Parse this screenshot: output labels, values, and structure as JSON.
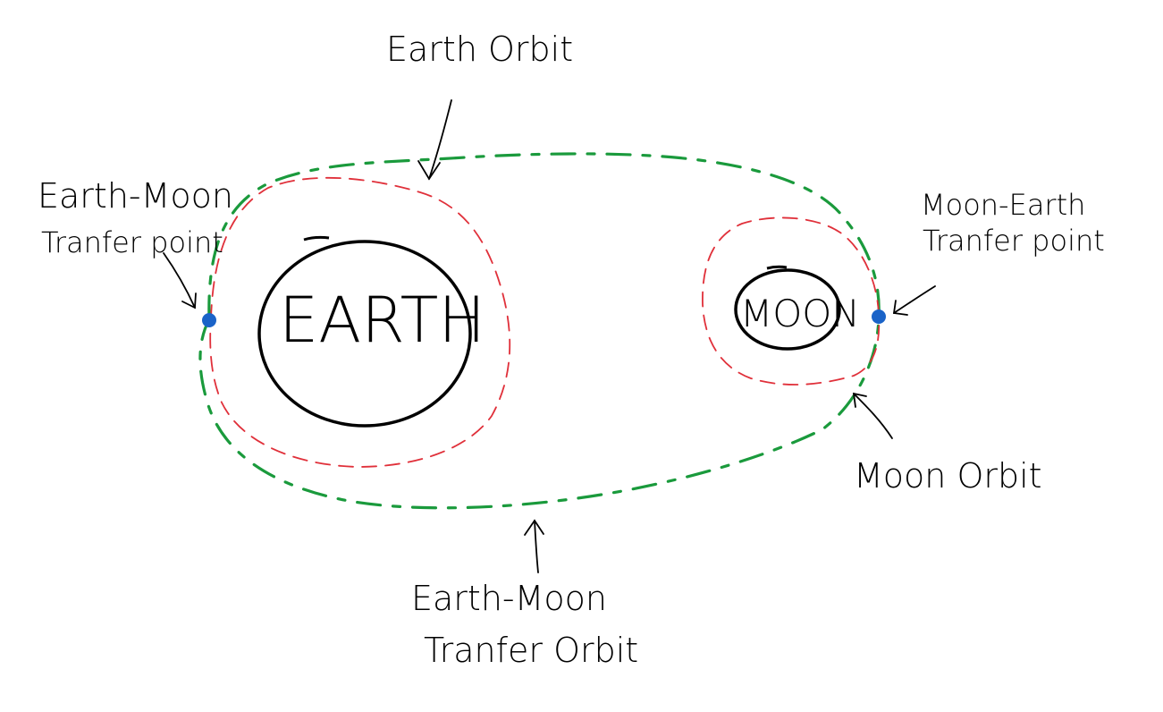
{
  "labels": {
    "earth_orbit": "Earth Orbit",
    "earth": "EARTH",
    "moon": "MOON",
    "earth_moon_point_line1": "Earth-Moon",
    "earth_moon_point_line2": "Tranfer point",
    "moon_earth_point_line1": "Moon-Earth",
    "moon_earth_point_line2": "Tranfer point",
    "moon_orbit": "Moon Orbit",
    "transfer_orbit_line1": "Earth-Moon",
    "transfer_orbit_line2": "Tranfer Orbit"
  },
  "colors": {
    "ink": "#000000",
    "transfer_orbit": "#1a9a3c",
    "local_orbit": "#e0303a",
    "transfer_point": "#1a63c8"
  }
}
